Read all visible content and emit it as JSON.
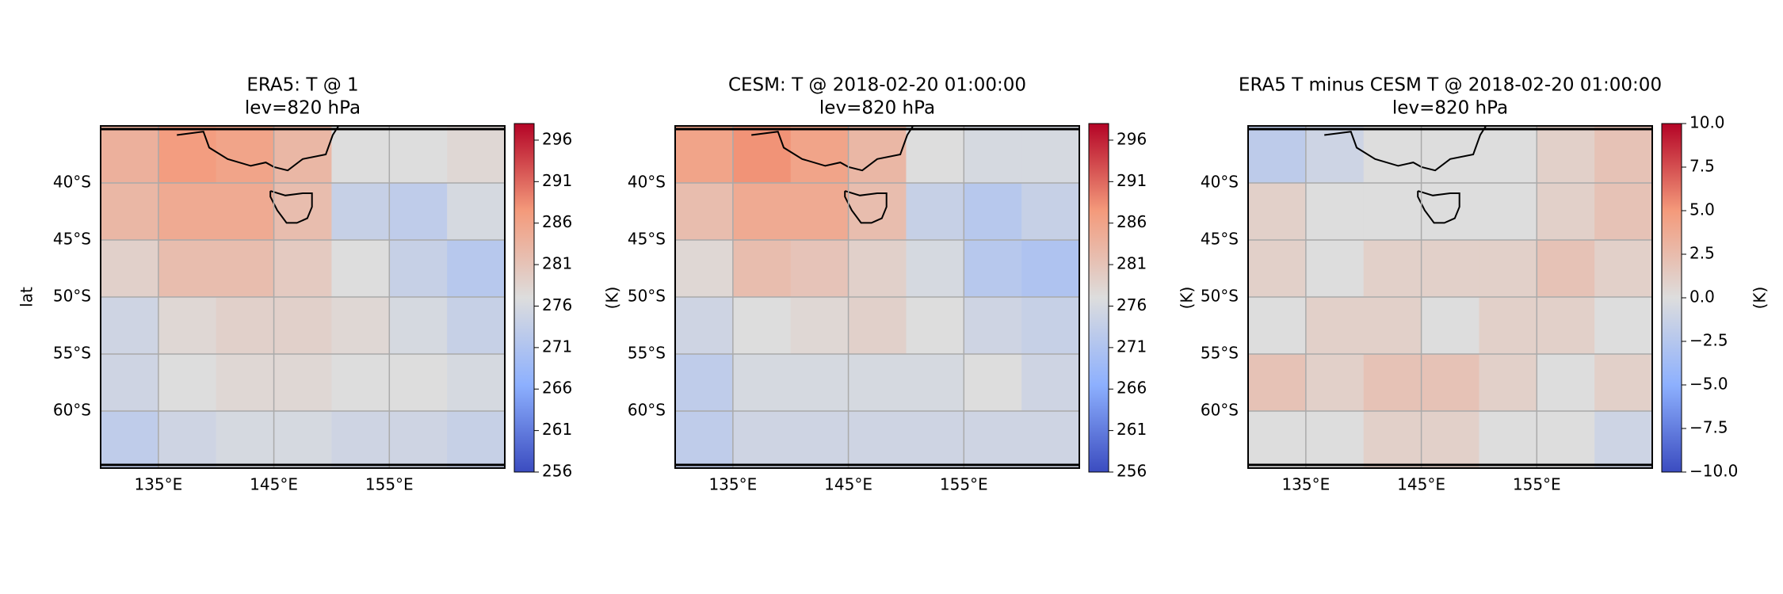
{
  "chart_data": [
    {
      "type": "heatmap",
      "title": "ERA5: T @ 1",
      "subtitle": "lev=820 hPa",
      "ylabel": "lat",
      "colorbar_label": "(K)",
      "cmap": "coolwarm",
      "grid": true,
      "x": [
        130,
        135,
        140,
        145,
        150,
        155,
        160,
        165
      ],
      "y": [
        -35,
        -40,
        -45,
        -50,
        -55,
        -60,
        -65
      ],
      "values": [
        [
          284,
          287,
          286,
          283,
          277,
          277,
          278
        ],
        [
          283,
          285,
          285,
          282,
          274,
          273,
          276
        ],
        [
          279,
          282,
          282,
          280,
          277,
          274,
          272
        ],
        [
          275,
          278,
          279,
          279,
          278,
          276,
          274
        ],
        [
          275,
          277,
          278,
          278,
          277,
          277,
          276
        ],
        [
          273,
          275,
          276,
          276,
          275,
          275,
          274
        ]
      ],
      "xlim": [
        130,
        165
      ],
      "ylim": [
        -65,
        -35
      ],
      "xticks": [
        {
          "value": 135,
          "label": "135°E"
        },
        {
          "value": 145,
          "label": "145°E"
        },
        {
          "value": 155,
          "label": "155°E"
        }
      ],
      "yticks": [
        {
          "value": -40,
          "label": "40°S"
        },
        {
          "value": -45,
          "label": "45°S"
        },
        {
          "value": -50,
          "label": "50°S"
        },
        {
          "value": -55,
          "label": "55°S"
        },
        {
          "value": -60,
          "label": "60°S"
        }
      ],
      "clim": [
        256,
        298
      ],
      "cticks": [
        256,
        261,
        266,
        271,
        276,
        281,
        286,
        291,
        296
      ]
    },
    {
      "type": "heatmap",
      "title": "CESM: T @ 2018-02-20 01:00:00",
      "subtitle": "lev=820 hPa",
      "colorbar_label": "(K)",
      "cmap": "coolwarm",
      "grid": true,
      "x": [
        130,
        135,
        140,
        145,
        150,
        155,
        160,
        165
      ],
      "y": [
        -35,
        -40,
        -45,
        -50,
        -55,
        -60,
        -65
      ],
      "values": [
        [
          286,
          288,
          286,
          283,
          277,
          276,
          276
        ],
        [
          282,
          285,
          285,
          282,
          274,
          272,
          274
        ],
        [
          278,
          282,
          281,
          279,
          276,
          272,
          271
        ],
        [
          275,
          277,
          278,
          279,
          277,
          275,
          274
        ],
        [
          273,
          276,
          276,
          276,
          276,
          277,
          275
        ],
        [
          273,
          275,
          275,
          275,
          275,
          275,
          275
        ]
      ],
      "xlim": [
        130,
        165
      ],
      "ylim": [
        -65,
        -35
      ],
      "xticks": [
        {
          "value": 135,
          "label": "135°E"
        },
        {
          "value": 145,
          "label": "145°E"
        },
        {
          "value": 155,
          "label": "155°E"
        }
      ],
      "yticks": [
        {
          "value": -40,
          "label": "40°S"
        },
        {
          "value": -45,
          "label": "45°S"
        },
        {
          "value": -50,
          "label": "50°S"
        },
        {
          "value": -55,
          "label": "55°S"
        },
        {
          "value": -60,
          "label": "60°S"
        }
      ],
      "clim": [
        256,
        298
      ],
      "cticks": [
        256,
        261,
        266,
        271,
        276,
        281,
        286,
        291,
        296
      ]
    },
    {
      "type": "heatmap",
      "title": "ERA5 T minus CESM T @ 2018-02-20 01:00:00",
      "subtitle": "lev=820 hPa",
      "colorbar_label": "(K)",
      "cmap": "coolwarm",
      "grid": true,
      "x": [
        130,
        135,
        140,
        145,
        150,
        155,
        160,
        165
      ],
      "y": [
        -35,
        -40,
        -45,
        -50,
        -55,
        -60,
        -65
      ],
      "values": [
        [
          -2,
          -1,
          0,
          0,
          0,
          1,
          2
        ],
        [
          1,
          0,
          0,
          0,
          0,
          1,
          2
        ],
        [
          1,
          0,
          1,
          1,
          1,
          2,
          1
        ],
        [
          0,
          1,
          1,
          0,
          1,
          1,
          0
        ],
        [
          2,
          1,
          2,
          2,
          1,
          0,
          1
        ],
        [
          0,
          0,
          1,
          1,
          0,
          0,
          -1
        ]
      ],
      "xlim": [
        130,
        165
      ],
      "ylim": [
        -65,
        -35
      ],
      "xticks": [
        {
          "value": 135,
          "label": "135°E"
        },
        {
          "value": 145,
          "label": "145°E"
        },
        {
          "value": 155,
          "label": "155°E"
        }
      ],
      "yticks": [
        {
          "value": -40,
          "label": "40°S"
        },
        {
          "value": -45,
          "label": "45°S"
        },
        {
          "value": -50,
          "label": "50°S"
        },
        {
          "value": -55,
          "label": "55°S"
        },
        {
          "value": -60,
          "label": "60°S"
        }
      ],
      "clim": [
        -10,
        10
      ],
      "cticks": [
        {
          "value": -10,
          "label": "−10.0"
        },
        {
          "value": -7.5,
          "label": "−7.5"
        },
        {
          "value": -5,
          "label": "−5.0"
        },
        {
          "value": -2.5,
          "label": "−2.5"
        },
        {
          "value": 0,
          "label": "0.0"
        },
        {
          "value": 2.5,
          "label": "2.5"
        },
        {
          "value": 5,
          "label": "5.0"
        },
        {
          "value": 7.5,
          "label": "7.5"
        },
        {
          "value": 10,
          "label": "10.0"
        }
      ]
    }
  ]
}
